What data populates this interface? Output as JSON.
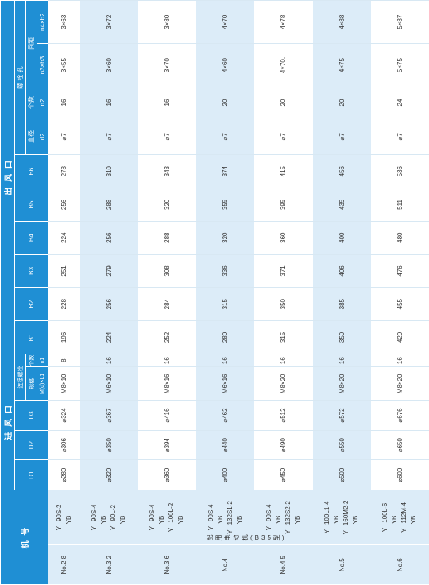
{
  "headers": {
    "machine": "机 号",
    "inlet": "进 风 口",
    "outlet": "出 风 口",
    "D1": "D1",
    "D2": "D2",
    "D3": "D3",
    "bolts": "连接螺栓",
    "spec": "规格",
    "count": "个数",
    "spec_sub": "M(d)×L1",
    "count_sub": "n1",
    "B1": "B1",
    "B2": "B2",
    "B3": "B3",
    "B4": "B4",
    "B5": "B5",
    "B6": "B6",
    "bolt_hole": "螺 栓 孔",
    "diameter": "直径",
    "hole_count": "个数",
    "spacing": "间距",
    "d2": "d2",
    "n2": "n2",
    "n3b3": "n3×b3",
    "n4b4": "n4×b2"
  },
  "motor_label": "配用电动机(B35型)",
  "rows": [
    {
      "no": "No.2.8",
      "motors": [
        [
          "Y",
          "90S-2"
        ],
        [
          "YB",
          ""
        ]
      ],
      "D1": "⌀280",
      "D2": "⌀306",
      "D3": "⌀324",
      "spec": "M8×10",
      "n1": "8",
      "B1": "196",
      "B2": "228",
      "B3": "251",
      "B4": "224",
      "B5": "256",
      "B6": "278",
      "d2": "⌀7",
      "n2": "16",
      "n3b3": "3×55",
      "n4b4": "3×63"
    },
    {
      "no": "No.3.2",
      "motors": [
        [
          "Y",
          "90S-4"
        ],
        [
          "YB",
          ""
        ],
        [
          "Y",
          "90L-2"
        ],
        [
          "YB",
          ""
        ]
      ],
      "D1": "⌀320",
      "D2": "⌀350",
      "D3": "⌀367",
      "spec": "M6×10",
      "n1": "16",
      "B1": "224",
      "B2": "256",
      "B3": "279",
      "B4": "256",
      "B5": "288",
      "B6": "310",
      "d2": "⌀7",
      "n2": "16",
      "n3b3": "3×60",
      "n4b4": "3×72"
    },
    {
      "no": "No.3.6",
      "motors": [
        [
          "Y",
          "90S-4"
        ],
        [
          "YB",
          ""
        ],
        [
          "Y",
          "100L-2"
        ],
        [
          "YB",
          ""
        ]
      ],
      "D1": "⌀360",
      "D2": "⌀394",
      "D3": "⌀416",
      "spec": "M8×16",
      "n1": "16",
      "B1": "252",
      "B2": "284",
      "B3": "308",
      "B4": "288",
      "B5": "320",
      "B6": "343",
      "d2": "⌀7",
      "n2": "16",
      "n3b3": "3×70",
      "n4b4": "3×80"
    },
    {
      "no": "No.4",
      "motors": [
        [
          "Y",
          "90S-4"
        ],
        [
          "YB",
          ""
        ],
        [
          "Y",
          "132S1-2"
        ],
        [
          "YB",
          ""
        ]
      ],
      "D1": "⌀400",
      "D2": "⌀440",
      "D3": "⌀462",
      "spec": "M6×16",
      "n1": "16",
      "B1": "280",
      "B2": "315",
      "B3": "336",
      "B4": "320",
      "B5": "355",
      "B6": "374",
      "d2": "⌀7",
      "n2": "20",
      "n3b3": "4×60",
      "n4b4": "4×70"
    },
    {
      "no": "No.4.5",
      "motors": [
        [
          "Y",
          "90S-4"
        ],
        [
          "YB",
          ""
        ],
        [
          "Y",
          "132S2-2"
        ],
        [
          "YB",
          ""
        ]
      ],
      "D1": "⌀450",
      "D2": "⌀490",
      "D3": "⌀512",
      "spec": "M8×20",
      "n1": "16",
      "B1": "315",
      "B2": "350",
      "B3": "371",
      "B4": "360",
      "B5": "395",
      "B6": "415",
      "d2": "⌀7",
      "n2": "20",
      "n3b3": "4×70.",
      "n4b4": "4×78"
    },
    {
      "no": "No.5",
      "motors": [
        [
          "Y",
          "100L1-4"
        ],
        [
          "YB",
          ""
        ],
        [
          "Y",
          "160M2-2"
        ],
        [
          "YB",
          ""
        ]
      ],
      "D1": "⌀500",
      "D2": "⌀550",
      "D3": "⌀572",
      "spec": "M8×20",
      "n1": "16",
      "B1": "350",
      "B2": "385",
      "B3": "406",
      "B4": "400",
      "B5": "435",
      "B6": "456",
      "d2": "⌀7",
      "n2": "20",
      "n3b3": "4×75",
      "n4b4": "4×88"
    },
    {
      "no": "No.6",
      "motors": [
        [
          "Y",
          "100L-6"
        ],
        [
          "YB",
          ""
        ],
        [
          "Y",
          "112M-4"
        ],
        [
          "YB",
          ""
        ]
      ],
      "D1": "⌀600",
      "D2": "⌀650",
      "D3": "⌀676",
      "spec": "M8×20",
      "n1": "16",
      "B1": "420",
      "B2": "455",
      "B3": "476",
      "B4": "480",
      "B5": "511",
      "B6": "536",
      "d2": "⌀7",
      "n2": "24",
      "n3b3": "5×75",
      "n4b4": "5×87"
    }
  ]
}
